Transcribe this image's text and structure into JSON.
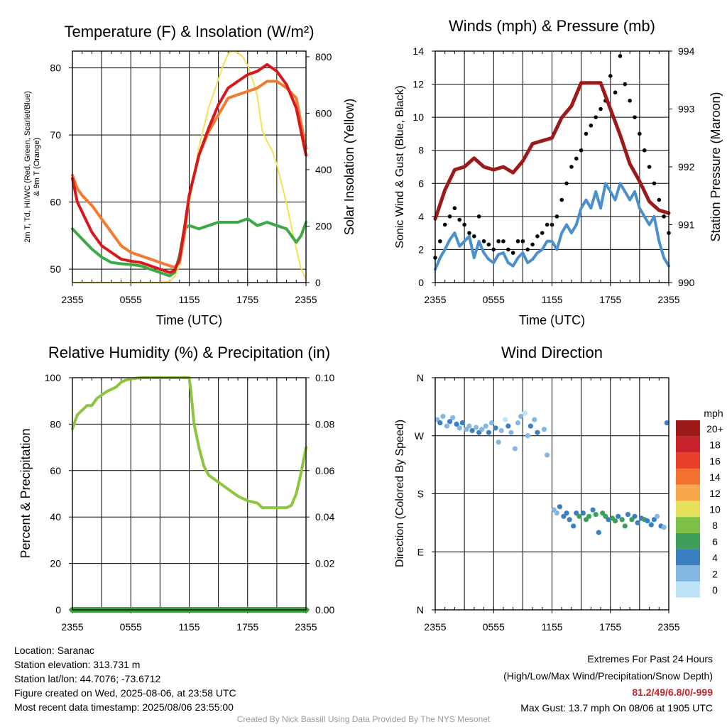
{
  "chart_data": [
    {
      "type": "line",
      "title": "Temperature (F) & Insolation (W/m²)",
      "xlabel": "Time (UTC)",
      "ylabel_left": "2m T, Td, HI/WC (Red, Green, Scarlet/Blue) & 9m T (Orange)",
      "ylabel_right": "Solar Insolation (Yellow)",
      "x_ticks": [
        "2355",
        "0555",
        "1155",
        "1755",
        "2355"
      ],
      "y_left_ticks": [
        50,
        60,
        70,
        80
      ],
      "y_left_range": [
        48,
        82.5
      ],
      "y_right_ticks": [
        0,
        200,
        400,
        600,
        800
      ],
      "y_right_range": [
        0,
        820
      ],
      "x_range_hours": [
        0,
        24
      ],
      "grid": true,
      "series": [
        {
          "name": "2m T",
          "color": "#d7191c",
          "axis": "left",
          "x": [
            0,
            0.5,
            1,
            2,
            3,
            4,
            5,
            6,
            7,
            8,
            9,
            10,
            10.5,
            11,
            11.5,
            12,
            12.5,
            13,
            14,
            15,
            16,
            17,
            18,
            19,
            20,
            21,
            22,
            23,
            24
          ],
          "y": [
            63.5,
            60,
            58.5,
            55.5,
            53.5,
            52.5,
            51.5,
            51.2,
            51,
            50.5,
            50,
            49.5,
            49.8,
            51.5,
            56,
            61,
            64,
            67,
            71,
            74.5,
            77,
            78,
            79,
            79.5,
            80.5,
            79.5,
            77.5,
            74,
            67
          ]
        },
        {
          "name": "9m T",
          "color": "#f47a2f",
          "axis": "left",
          "x": [
            0,
            0.5,
            1,
            2,
            3,
            4,
            5,
            6,
            7,
            8,
            9,
            10,
            10.5,
            11,
            11.5,
            12,
            13,
            14,
            15,
            16,
            17,
            18,
            19,
            20,
            21,
            22,
            23,
            24
          ],
          "y": [
            64,
            62,
            61,
            59.5,
            57.5,
            55.5,
            53.5,
            52.5,
            52,
            51.5,
            51,
            50.5,
            50.3,
            51,
            55,
            61,
            67,
            70.5,
            73,
            75.5,
            76,
            76.5,
            77,
            78,
            78,
            77,
            75.5,
            68
          ]
        },
        {
          "name": "Td",
          "color": "#3da944",
          "axis": "left",
          "x": [
            0,
            1,
            2,
            3,
            4,
            5,
            6,
            7,
            8,
            9,
            10,
            10.5,
            11,
            11.5,
            12,
            13,
            14,
            15,
            16,
            17,
            18,
            19,
            20,
            21,
            22,
            23,
            23.5,
            24
          ],
          "y": [
            56,
            54.5,
            53,
            51.8,
            51,
            50.8,
            50.7,
            50.5,
            50,
            49.5,
            49,
            49.5,
            52,
            56,
            56.5,
            56,
            56.5,
            57,
            57,
            57,
            57.5,
            56.5,
            57,
            56.5,
            56,
            54,
            55,
            57
          ]
        },
        {
          "name": "Solar Insolation",
          "color": "#f5e251",
          "axis": "right",
          "x": [
            0,
            6,
            9,
            10,
            10.5,
            11,
            11.5,
            12,
            12.5,
            13,
            14,
            15,
            15.5,
            16,
            16.5,
            17,
            17.5,
            18,
            18.5,
            19,
            19.5,
            20,
            20.5,
            21,
            21.5,
            22,
            22.5,
            23,
            23.5,
            24
          ],
          "y": [
            0,
            0,
            0,
            5,
            20,
            60,
            150,
            280,
            380,
            480,
            620,
            720,
            770,
            810,
            820,
            815,
            800,
            770,
            720,
            660,
            540,
            500,
            470,
            420,
            350,
            280,
            200,
            120,
            50,
            10
          ]
        }
      ]
    },
    {
      "type": "scatter",
      "title": "Winds (mph) & Pressure (mb)",
      "xlabel": "Time (UTC)",
      "ylabel_left": "Sonic Wind & Gust (Blue, Black)",
      "ylabel_right": "Station Pressure (Maroon)",
      "x_ticks": [
        "2355",
        "0555",
        "1155",
        "1755",
        "2355"
      ],
      "y_left_ticks": [
        0,
        2,
        4,
        6,
        8,
        10,
        12,
        14
      ],
      "y_left_range": [
        0,
        14
      ],
      "y_right_ticks": [
        990,
        991,
        992,
        993,
        994
      ],
      "y_right_range": [
        990,
        994
      ],
      "x_range_hours": [
        0,
        24
      ],
      "grid": true,
      "series": [
        {
          "name": "Sonic Wind",
          "color": "#4a8fce",
          "axis": "left",
          "x": [
            0,
            0.5,
            1,
            1.5,
            2,
            2.5,
            3,
            3.5,
            4,
            4.5,
            5,
            5.5,
            6,
            6.5,
            7,
            7.5,
            8,
            8.5,
            9,
            9.5,
            10,
            10.5,
            11,
            11.5,
            12,
            12.5,
            13,
            13.5,
            14,
            14.5,
            15,
            15.5,
            16,
            16.5,
            17,
            17.5,
            18,
            18.5,
            19,
            19.5,
            20,
            20.5,
            21,
            21.5,
            22,
            22.5,
            23,
            23.5,
            24
          ],
          "y": [
            0.8,
            1.5,
            2,
            2.6,
            3,
            2.2,
            2.5,
            2.8,
            1.5,
            2.5,
            1.8,
            1.4,
            1.2,
            1.7,
            1.8,
            1.2,
            1,
            1.5,
            1.8,
            1.2,
            1.4,
            1.8,
            2,
            2.5,
            2.5,
            2,
            3,
            3.5,
            3,
            3.5,
            4.5,
            5,
            4.5,
            5.5,
            4.5,
            6,
            5.5,
            5,
            6,
            5.5,
            5,
            5.5,
            4.5,
            4,
            3.5,
            4,
            2.5,
            1.5,
            1
          ]
        },
        {
          "name": "Gust",
          "color": "#000000",
          "axis": "left",
          "x": [
            0,
            0.5,
            1,
            1.5,
            2,
            2.5,
            3,
            3.5,
            4,
            4.5,
            5,
            5.5,
            6,
            6.5,
            7,
            7.5,
            8,
            8.5,
            9,
            9.5,
            10,
            10.5,
            11,
            11.5,
            12,
            12.5,
            13,
            13.5,
            14,
            14.5,
            15,
            15.5,
            16,
            16.5,
            17,
            17.5,
            18,
            18.5,
            19,
            19.5,
            20,
            20.5,
            21,
            21.5,
            22,
            22.5,
            23,
            23.5,
            24
          ],
          "y": [
            1.5,
            2.5,
            3.5,
            4,
            4.5,
            3.8,
            3.5,
            3,
            2.8,
            4,
            2.5,
            2.3,
            2,
            2.5,
            2.5,
            2,
            1.8,
            2.5,
            2.5,
            2,
            2.3,
            2.8,
            3,
            3.5,
            3.5,
            4,
            5,
            6,
            7,
            7.5,
            8,
            9,
            9.5,
            10,
            10.5,
            11,
            12.5,
            11.5,
            13.7,
            12,
            11,
            10,
            9,
            8,
            7,
            6,
            5,
            4,
            3
          ]
        },
        {
          "name": "Station Pressure",
          "color": "#9e1a1a",
          "axis": "right",
          "x": [
            0,
            1,
            2,
            3,
            4,
            5,
            6,
            7,
            8,
            9,
            10,
            11,
            12,
            13,
            14,
            15,
            16,
            17,
            18,
            19,
            20,
            21,
            22,
            23,
            24
          ],
          "y": [
            991.1,
            991.6,
            991.95,
            992.0,
            992.15,
            992.0,
            991.95,
            992.0,
            991.9,
            992.1,
            992.4,
            992.45,
            992.5,
            992.85,
            993.05,
            993.45,
            993.45,
            993.45,
            993.0,
            992.55,
            992.05,
            991.75,
            991.4,
            991.25,
            991.2
          ]
        }
      ]
    },
    {
      "type": "line",
      "title": "Relative Humidity (%) & Precipitation (in)",
      "ylabel_left": "Percent & Precipitation",
      "x_ticks": [
        "2355",
        "0555",
        "1155",
        "1755",
        "2355"
      ],
      "y_left_ticks": [
        0,
        20,
        40,
        60,
        80,
        100
      ],
      "y_left_range": [
        0,
        100
      ],
      "y_right_ticks": [
        "0.00",
        "0.02",
        "0.04",
        "0.06",
        "0.08",
        "0.10"
      ],
      "y_right_range": [
        0,
        0.1
      ],
      "x_range_hours": [
        0,
        24
      ],
      "grid": true,
      "series": [
        {
          "name": "Relative Humidity",
          "color": "#8cc63f",
          "axis": "left",
          "x": [
            0,
            0.5,
            1,
            1.5,
            2,
            2.5,
            3,
            3.5,
            4,
            4.5,
            5,
            5.5,
            6,
            7,
            8,
            9,
            10,
            11,
            12,
            12.2,
            12.5,
            13,
            13.5,
            14,
            15,
            16,
            17,
            18,
            19,
            19.5,
            20,
            21,
            22,
            22.5,
            23,
            23.5,
            24
          ],
          "y": [
            78,
            84,
            86,
            88,
            88,
            91,
            92.5,
            94,
            95,
            96,
            98,
            99,
            99.5,
            100,
            100,
            100,
            100,
            100,
            100,
            93,
            80,
            70,
            62,
            58,
            55,
            52,
            49,
            47,
            46,
            44,
            44,
            44,
            44,
            45,
            50,
            59,
            70
          ]
        },
        {
          "name": "Precipitation",
          "color": "#3d9f3d",
          "axis": "right",
          "x": [
            0,
            24
          ],
          "y": [
            0,
            0
          ]
        }
      ]
    },
    {
      "type": "scatter",
      "title": "Wind Direction",
      "ylabel_left": "Direction (Colored By Speed)",
      "x_ticks": [
        "2355",
        "0555",
        "1155",
        "1755",
        "2355"
      ],
      "y_ticks": [
        "N",
        "W",
        "S",
        "E",
        "N"
      ],
      "y_range_degrees": [
        0,
        360
      ],
      "x_range_hours": [
        0,
        24
      ],
      "grid": true,
      "legend": {
        "title": "mph",
        "labels": [
          "20+",
          "18",
          "16",
          "14",
          "12",
          "10",
          "8",
          "6",
          "4",
          "2",
          "0"
        ],
        "colors": [
          "#9e1a1a",
          "#c8232b",
          "#e8402a",
          "#f4702e",
          "#f8a84a",
          "#e6e05a",
          "#7ec046",
          "#3d9f5a",
          "#3a7fc1",
          "#84b8e2",
          "#bfe3f7"
        ],
        "placement": "right"
      },
      "series": [
        {
          "name": "Wind Direction",
          "axis": "left",
          "x": [
            0.2,
            0.5,
            0.8,
            1.2,
            1.5,
            1.8,
            2.2,
            2.5,
            2.8,
            3.2,
            3.5,
            3.8,
            4.2,
            4.5,
            4.8,
            5.2,
            5.5,
            5.8,
            6.2,
            6.5,
            6.8,
            7.2,
            7.5,
            7.8,
            8.2,
            8.5,
            8.8,
            9.2,
            9.5,
            9.8,
            10.2,
            10.5,
            11.2,
            11.5,
            12.2,
            12.5,
            12.8,
            13.2,
            13.5,
            13.8,
            14.2,
            14.5,
            14.8,
            15.2,
            15.5,
            15.8,
            16.2,
            16.5,
            16.8,
            17.2,
            17.5,
            17.8,
            18.2,
            18.5,
            18.8,
            19.2,
            19.5,
            19.8,
            20.2,
            20.5,
            20.8,
            21.2,
            21.5,
            21.8,
            22.2,
            22.5,
            22.8,
            23.2,
            23.5,
            23.8
          ],
          "y": [
            295,
            290,
            300,
            285,
            292,
            298,
            288,
            282,
            290,
            280,
            285,
            278,
            283,
            275,
            280,
            285,
            275,
            290,
            282,
            260,
            278,
            295,
            285,
            275,
            250,
            290,
            300,
            305,
            270,
            285,
            295,
            275,
            280,
            240,
            155,
            150,
            160,
            145,
            150,
            140,
            130,
            150,
            145,
            150,
            140,
            145,
            155,
            148,
            120,
            150,
            145,
            140,
            142,
            138,
            145,
            140,
            130,
            148,
            140,
            145,
            135,
            142,
            140,
            138,
            132,
            140,
            145,
            130,
            128,
            290
          ],
          "speed_mph": [
            2,
            3,
            2,
            1,
            3,
            2,
            3,
            2,
            3,
            1,
            2,
            3,
            2,
            3,
            2,
            1,
            3,
            2,
            3,
            1,
            2,
            0,
            3,
            2,
            1,
            2,
            1,
            0,
            2,
            3,
            2,
            3,
            1,
            1,
            1,
            2,
            3,
            4,
            3,
            4,
            3,
            4,
            5,
            4,
            6,
            5,
            4,
            6,
            4,
            5,
            6,
            4,
            5,
            6,
            4,
            5,
            6,
            4,
            5,
            4,
            3,
            4,
            5,
            3,
            4,
            3,
            2,
            3,
            2,
            4
          ]
        }
      ]
    }
  ],
  "footer": {
    "location": "Location: Saranac",
    "elevation": "Station elevation: 313.731 m",
    "latlon": "Station lat/lon: 44.7076; -73.6712",
    "created": "Figure created on Wed, 2025-08-06, at 23:58 UTC",
    "recent": "Most recent data timestamp: 2025/08/06 23:55:00",
    "extremes_title": "Extremes For Past 24 Hours",
    "extremes_sub": "(High/Low/Max Wind/Precipitation/Snow Depth)",
    "extremes_values": "81.2/49/6.8/0/-999",
    "max_gust": "Max Gust: 13.7 mph On 08/06 at 1905 UTC",
    "credit": "Created By Nick Bassill Using Data Provided By The NYS Mesonet"
  }
}
